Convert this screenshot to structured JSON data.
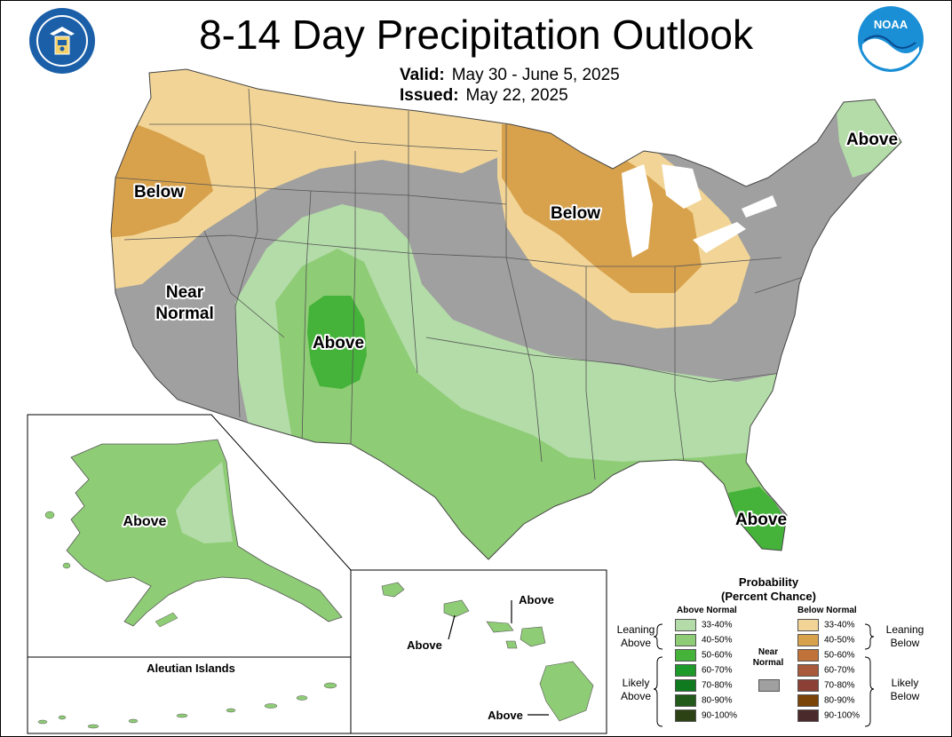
{
  "header": {
    "title": "8-14 Day Precipitation Outlook",
    "valid_label": "Valid:",
    "valid_value": "May 30 - June 5, 2025",
    "issued_label": "Issued:",
    "issued_value": "May 22, 2025"
  },
  "logos": {
    "left": "department-of-commerce-seal",
    "right": "noaa-logo",
    "noaa_text": "NOAA"
  },
  "map": {
    "colors": {
      "below_33_40": "#f2d596",
      "below_40_50": "#d8a24d",
      "near_normal": "#a0a0a0",
      "above_33_40": "#b3dca8",
      "above_40_50": "#8fcc76",
      "above_50_60": "#45b33a",
      "water": "#ffffff",
      "borders": "#555555"
    },
    "labels": {
      "west_below": "Below",
      "great_lakes_below": "Below",
      "maine_above": "Above",
      "near_normal_1": "Near",
      "near_normal_2": "Normal",
      "southwest_above": "Above",
      "florida_above": "Above",
      "alaska_above": "Above",
      "hawaii_above_1": "Above",
      "hawaii_above_2": "Above",
      "hawaii_above_3": "Above",
      "aleutian_title": "Aleutian Islands"
    }
  },
  "legend": {
    "title_line1": "Probability",
    "title_line2": "(Percent Chance)",
    "above_header": "Above Normal",
    "below_header": "Below Normal",
    "near_normal_1": "Near",
    "near_normal_2": "Normal",
    "leaning_above_1": "Leaning",
    "leaning_above_2": "Above",
    "likely_above_1": "Likely",
    "likely_above_2": "Above",
    "leaning_below_1": "Leaning",
    "leaning_below_2": "Below",
    "likely_below_1": "Likely",
    "likely_below_2": "Below",
    "above_rows": [
      {
        "label": "33-40%",
        "color": "#b3dca8"
      },
      {
        "label": "40-50%",
        "color": "#8fcc76"
      },
      {
        "label": "50-60%",
        "color": "#45b33a"
      },
      {
        "label": "60-70%",
        "color": "#1e9a2a"
      },
      {
        "label": "70-80%",
        "color": "#0f7a1e"
      },
      {
        "label": "80-90%",
        "color": "#215a1a"
      },
      {
        "label": "90-100%",
        "color": "#2d4214"
      }
    ],
    "below_rows": [
      {
        "label": "33-40%",
        "color": "#f2d596"
      },
      {
        "label": "40-50%",
        "color": "#d8a24d"
      },
      {
        "label": "50-60%",
        "color": "#c07238"
      },
      {
        "label": "60-70%",
        "color": "#a85a3a"
      },
      {
        "label": "70-80%",
        "color": "#8c3f34"
      },
      {
        "label": "80-90%",
        "color": "#7a4308"
      },
      {
        "label": "90-100%",
        "color": "#4a2a2a"
      }
    ]
  }
}
